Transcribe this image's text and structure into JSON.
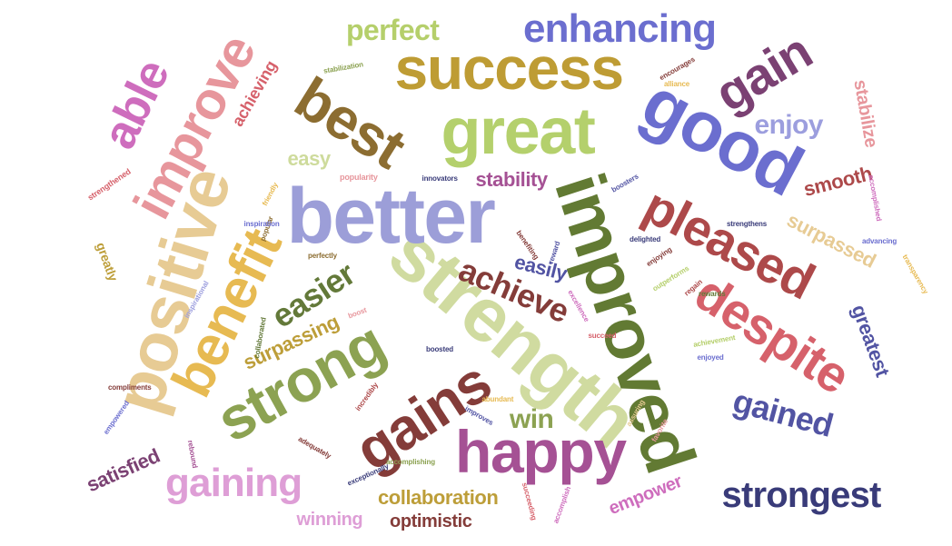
{
  "words": [
    {
      "text": "strength",
      "color": "#d0dba0"
    },
    {
      "text": "improved",
      "color": "#627a33"
    },
    {
      "text": "better",
      "color": "#9c9ed8"
    },
    {
      "text": "great",
      "color": "#b4d06c"
    },
    {
      "text": "success",
      "color": "#be9c34"
    },
    {
      "text": "good",
      "color": "#6b6ecf"
    },
    {
      "text": "positive",
      "color": "#e7cb94"
    },
    {
      "text": "benefit",
      "color": "#e7ba52"
    },
    {
      "text": "strong",
      "color": "#8ca252"
    },
    {
      "text": "gains",
      "color": "#843c39"
    },
    {
      "text": "happy",
      "color": "#a55194"
    },
    {
      "text": "pleased",
      "color": "#ad494a"
    },
    {
      "text": "despite",
      "color": "#d6616b"
    },
    {
      "text": "best",
      "color": "#8c6d31"
    },
    {
      "text": "improve",
      "color": "#e7969c"
    },
    {
      "text": "able",
      "color": "#ce6dbd"
    },
    {
      "text": "gain",
      "color": "#7b4173"
    },
    {
      "text": "enhancing",
      "color": "#6b6ecf"
    },
    {
      "text": "gaining",
      "color": "#de9ed6"
    },
    {
      "text": "strongest",
      "color": "#393b79"
    },
    {
      "text": "gained",
      "color": "#5254a3"
    },
    {
      "text": "achieve",
      "color": "#843c39"
    },
    {
      "text": "easier",
      "color": "#637939"
    },
    {
      "text": "perfect",
      "color": "#b5cf6b"
    },
    {
      "text": "win",
      "color": "#8ca252"
    },
    {
      "text": "enjoy",
      "color": "#9c9ede"
    },
    {
      "text": "collaboration",
      "color": "#bd9e39"
    },
    {
      "text": "surpassing",
      "color": "#bd9e39"
    },
    {
      "text": "surpassed",
      "color": "#e7cb94"
    },
    {
      "text": "smooth",
      "color": "#ad494a"
    },
    {
      "text": "easily",
      "color": "#5254a3"
    },
    {
      "text": "stability",
      "color": "#a55194"
    },
    {
      "text": "easy",
      "color": "#cedb9c"
    },
    {
      "text": "achieving",
      "color": "#d6616b"
    },
    {
      "text": "satisfied",
      "color": "#7b4173"
    },
    {
      "text": "empower",
      "color": "#ce6dbd"
    },
    {
      "text": "greatest",
      "color": "#5254a3"
    },
    {
      "text": "optimistic",
      "color": "#843c39"
    },
    {
      "text": "winning",
      "color": "#de9ed6"
    },
    {
      "text": "stabilize",
      "color": "#e7969c"
    },
    {
      "text": "greatly",
      "color": "#bd9e39"
    },
    {
      "text": "strengthened",
      "color": "#d6616b"
    },
    {
      "text": "popularity",
      "color": "#e7969c"
    },
    {
      "text": "friendly",
      "color": "#e7ba52"
    },
    {
      "text": "popular",
      "color": "#8c6d31"
    },
    {
      "text": "inspiration",
      "color": "#6b6ecf"
    },
    {
      "text": "perfectly",
      "color": "#8c6d31"
    },
    {
      "text": "innovators",
      "color": "#393b79"
    },
    {
      "text": "stabilization",
      "color": "#8ca252"
    },
    {
      "text": "encourages",
      "color": "#843c39"
    },
    {
      "text": "alliance",
      "color": "#e7ba52"
    },
    {
      "text": "boosters",
      "color": "#5254a3"
    },
    {
      "text": "strengthens",
      "color": "#393b79"
    },
    {
      "text": "accomplished",
      "color": "#ce6dbd"
    },
    {
      "text": "advancing",
      "color": "#6b6ecf"
    },
    {
      "text": "transparency",
      "color": "#e7ba52"
    },
    {
      "text": "benefiting",
      "color": "#843c39"
    },
    {
      "text": "reward",
      "color": "#5254a3"
    },
    {
      "text": "delighted",
      "color": "#393b79"
    },
    {
      "text": "enjoying",
      "color": "#843c39"
    },
    {
      "text": "outperforms",
      "color": "#b5cf6b"
    },
    {
      "text": "regain",
      "color": "#ad494a"
    },
    {
      "text": "rewards",
      "color": "#637939"
    },
    {
      "text": "excellence",
      "color": "#ce6dbd"
    },
    {
      "text": "succeed",
      "color": "#d6616b"
    },
    {
      "text": "achievement",
      "color": "#b5cf6b"
    },
    {
      "text": "enjoyed",
      "color": "#6b6ecf"
    },
    {
      "text": "boost",
      "color": "#e7969c"
    },
    {
      "text": "inspirational",
      "color": "#9c9ede"
    },
    {
      "text": "collaborated",
      "color": "#637939"
    },
    {
      "text": "boosted",
      "color": "#393b79"
    },
    {
      "text": "compliments",
      "color": "#843c39"
    },
    {
      "text": "incredibly",
      "color": "#ad494a"
    },
    {
      "text": "abundant",
      "color": "#e7ba52"
    },
    {
      "text": "improves",
      "color": "#5254a3"
    },
    {
      "text": "empowered",
      "color": "#6b6ecf"
    },
    {
      "text": "rebound",
      "color": "#a55194"
    },
    {
      "text": "adequately",
      "color": "#843c39"
    },
    {
      "text": "exceptionally",
      "color": "#393b79"
    },
    {
      "text": "accomplishing",
      "color": "#8ca252"
    },
    {
      "text": "assuring",
      "color": "#e7cb94"
    },
    {
      "text": "favorite",
      "color": "#e7969c"
    },
    {
      "text": "succeeding",
      "color": "#d6616b"
    },
    {
      "text": "accomplish",
      "color": "#ce6dbd"
    }
  ]
}
